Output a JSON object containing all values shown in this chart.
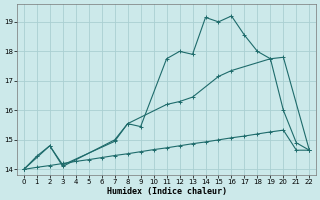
{
  "xlabel": "Humidex (Indice chaleur)",
  "xlim": [
    -0.5,
    22.5
  ],
  "ylim": [
    13.8,
    19.6
  ],
  "yticks": [
    14,
    15,
    16,
    17,
    18,
    19
  ],
  "xticks": [
    0,
    1,
    2,
    3,
    4,
    5,
    6,
    7,
    8,
    9,
    10,
    11,
    12,
    13,
    14,
    15,
    16,
    17,
    18,
    19,
    20,
    21,
    22
  ],
  "background_color": "#cce9ea",
  "grid_color": "#aacfd2",
  "line_color": "#1e6b6b",
  "curve1_x": [
    0,
    1,
    2,
    3,
    7,
    8,
    9,
    11,
    12,
    13,
    14,
    15,
    16,
    17,
    18,
    19,
    20,
    22
  ],
  "curve1_y": [
    14.0,
    14.45,
    14.8,
    14.1,
    15.0,
    15.55,
    15.45,
    17.75,
    18.0,
    17.9,
    19.15,
    19.0,
    19.2,
    18.55,
    18.0,
    17.75,
    17.8,
    14.65
  ],
  "curve2_x": [
    0,
    2,
    3,
    7,
    8,
    11,
    12,
    13,
    15,
    16,
    19,
    20,
    21,
    22
  ],
  "curve2_y": [
    14.0,
    14.8,
    14.15,
    14.95,
    15.55,
    16.2,
    16.3,
    16.45,
    17.15,
    17.35,
    17.75,
    16.0,
    14.9,
    14.65
  ],
  "curve3_x": [
    0,
    1,
    2,
    3,
    4,
    5,
    6,
    7,
    8,
    9,
    10,
    11,
    12,
    13,
    14,
    15,
    16,
    17,
    18,
    19,
    20,
    21,
    22
  ],
  "curve3_y": [
    14.0,
    14.07,
    14.13,
    14.2,
    14.27,
    14.33,
    14.4,
    14.47,
    14.53,
    14.6,
    14.67,
    14.73,
    14.8,
    14.87,
    14.93,
    15.0,
    15.07,
    15.13,
    15.2,
    15.27,
    15.33,
    14.65,
    14.65
  ]
}
